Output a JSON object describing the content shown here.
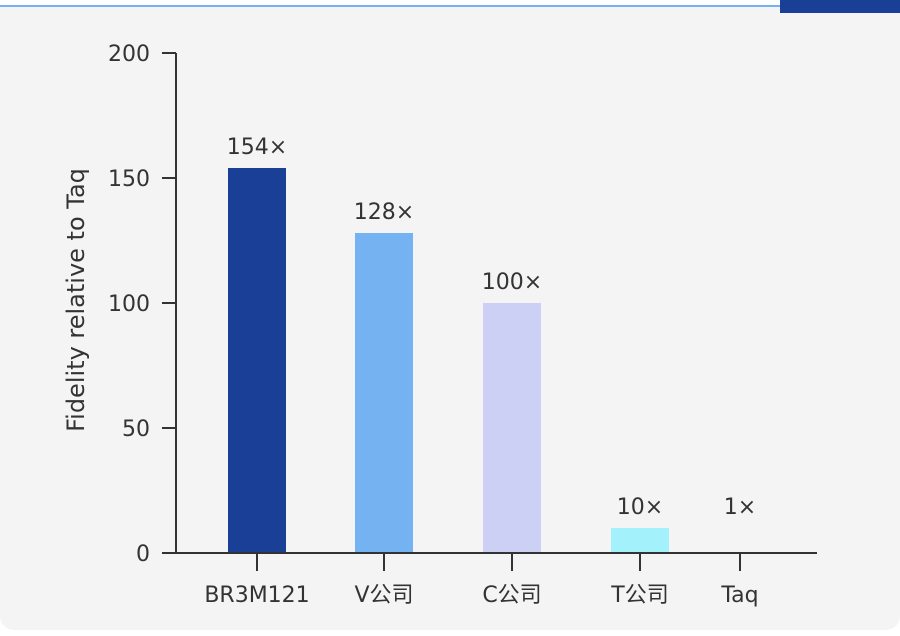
{
  "chart_data": {
    "type": "bar",
    "title": "",
    "xlabel": "",
    "ylabel": "Fidelity relative to Taq",
    "ylim": [
      0,
      200
    ],
    "yticks": [
      "0",
      "50",
      "100",
      "150",
      "200"
    ],
    "ytick_values": [
      0,
      50,
      100,
      150,
      200
    ],
    "categories": [
      "BR3M121",
      "V公司",
      "C公司",
      "T公司",
      "Taq"
    ],
    "values": [
      154,
      128,
      100,
      10,
      1
    ],
    "data_labels": [
      "154×",
      "128×",
      "100×",
      "10×",
      "1×"
    ],
    "colors": [
      "#1a3f96",
      "#74b2f2",
      "#cdd0f5",
      "#a3f1fb",
      "#a3f1fb"
    ],
    "grid": false,
    "legend": "none"
  }
}
